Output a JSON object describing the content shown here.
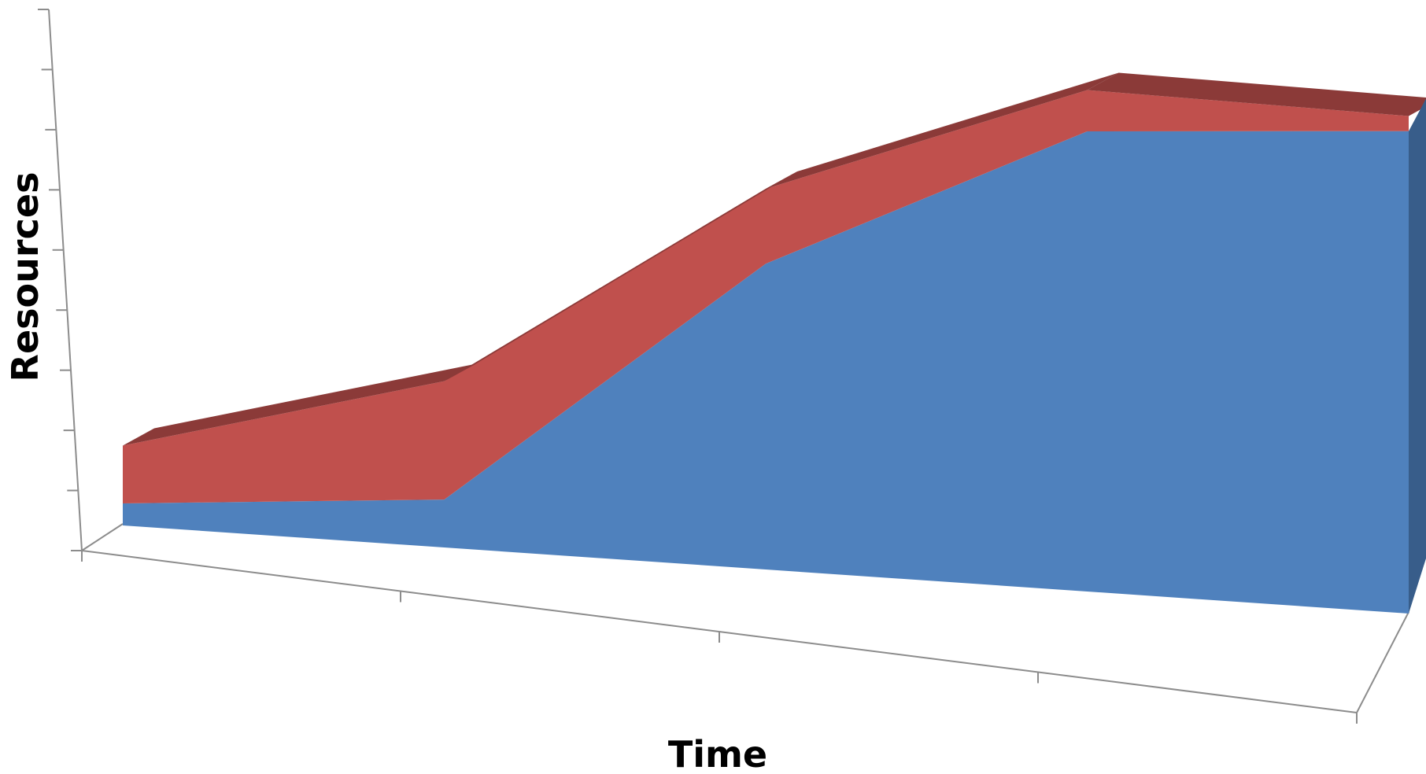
{
  "chart_data": {
    "type": "area",
    "stacked": true,
    "three_d": true,
    "title": "",
    "xlabel": "Time",
    "ylabel": "Resources",
    "categories": [
      "",
      "",
      "",
      "",
      ""
    ],
    "ylim": [
      0,
      9
    ],
    "y_tick_count": 10,
    "grid": false,
    "legend": "none",
    "series": [
      {
        "values": [
          0.4,
          0.85,
          5.3,
          7.8,
          8.0
        ],
        "color": "#4f81bd"
      },
      {
        "values": [
          1.05,
          2.1,
          1.3,
          0.7,
          0.25
        ],
        "color": "#c0504d"
      }
    ],
    "colors": {
      "axis": "#8c8c8c",
      "series1_side": "#385d8a",
      "series2_top": "#8b3a38"
    }
  }
}
